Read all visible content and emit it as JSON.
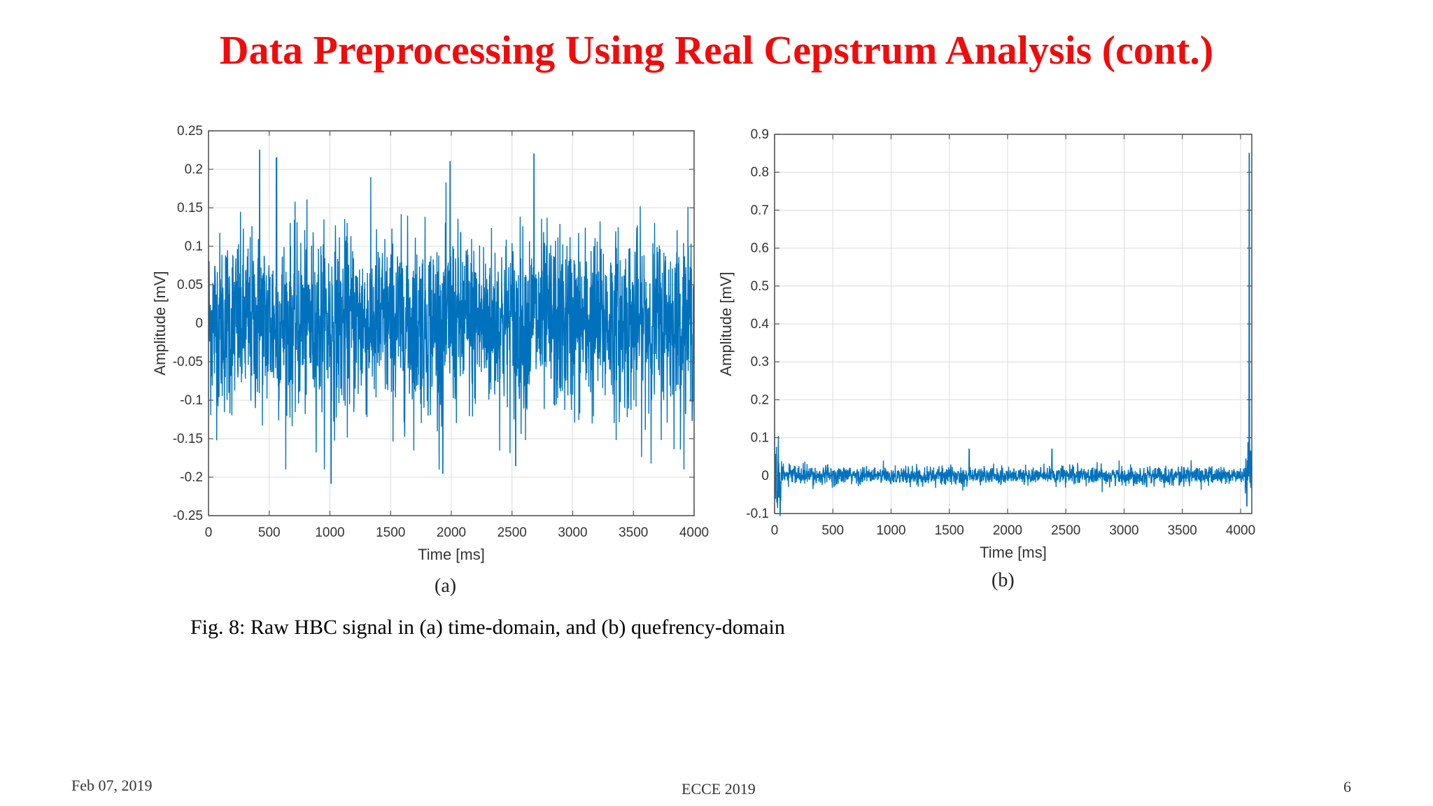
{
  "slide": {
    "title": "Data Preprocessing Using Real Cepstrum Analysis (cont.)",
    "caption": "Fig. 8: Raw HBC signal in (a) time-domain, and (b) quefrency-domain",
    "footer_left": "Feb 07, 2019",
    "footer_center": "ECCE 2019",
    "footer_right": "6"
  },
  "colors": {
    "title": "#f00c0c",
    "series": "#0072bd",
    "grid": "#dcdcdc"
  },
  "chart_data": [
    {
      "type": "line",
      "panel_label": "(a)",
      "xlabel": "Time [ms]",
      "ylabel": "Amplitude [mV]",
      "xlim": [
        0,
        4000
      ],
      "ylim": [
        -0.25,
        0.25
      ],
      "xticks": [
        0,
        500,
        1000,
        1500,
        2000,
        2500,
        3000,
        3500,
        4000
      ],
      "yticks": [
        -0.25,
        -0.2,
        -0.15,
        -0.1,
        -0.05,
        0,
        0.05,
        0.1,
        0.15,
        0.2,
        0.25
      ],
      "grid": true,
      "signal": {
        "description_of_shape": "noise",
        "amplitude_peak": 0.22,
        "amplitude_trough": -0.21
      },
      "notable_points": [
        {
          "x": 420,
          "y": 0.225
        },
        {
          "x": 560,
          "y": 0.215
        },
        {
          "x": 1010,
          "y": -0.208
        },
        {
          "x": 1990,
          "y": 0.21
        },
        {
          "x": 1930,
          "y": -0.195
        },
        {
          "x": 2680,
          "y": 0.22
        },
        {
          "x": 2530,
          "y": -0.185
        }
      ]
    },
    {
      "type": "line",
      "panel_label": "(b)",
      "xlabel": "Time [ms]",
      "ylabel": "Amplitude [mV]",
      "xlim": [
        0,
        4096
      ],
      "ylim": [
        -0.1,
        0.9
      ],
      "xticks": [
        0,
        500,
        1000,
        1500,
        2000,
        2500,
        3000,
        3500,
        4000
      ],
      "yticks": [
        -0.1,
        0,
        0.1,
        0.2,
        0.3,
        0.4,
        0.5,
        0.6,
        0.7,
        0.8,
        0.9
      ],
      "grid": true,
      "notable_points": [
        {
          "x": 0,
          "y": 0.11
        },
        {
          "x": 20,
          "y": -0.07
        },
        {
          "x": 1670,
          "y": 0.07
        },
        {
          "x": 2380,
          "y": 0.07
        },
        {
          "x": 4055,
          "y": -0.08
        },
        {
          "x": 4075,
          "y": 0.85
        }
      ]
    }
  ]
}
